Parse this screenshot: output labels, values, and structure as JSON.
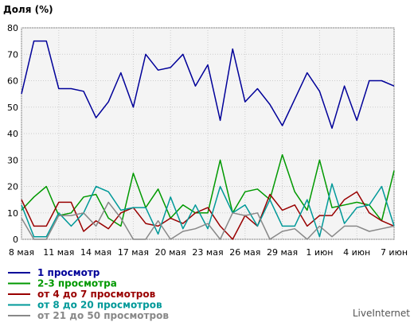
{
  "chart_data": {
    "type": "line",
    "ylabel": "Доля (%)",
    "ylim": [
      0,
      80
    ],
    "yticks": [
      "0",
      "10",
      "20",
      "30",
      "40",
      "50",
      "60",
      "70",
      "80"
    ],
    "x_tick_labels": [
      "8 мая",
      "11 мая",
      "14 мая",
      "17 мая",
      "20 мая",
      "23 мая",
      "26 мая",
      "29 мая",
      "1 июн",
      "4 июн",
      "7 июн"
    ],
    "x_tick_interval_days": 3,
    "grid": true,
    "legend_position": "bottom-left",
    "series": [
      {
        "name": "1 просмотр",
        "color": "#000099",
        "values": [
          55,
          75,
          75,
          57,
          57,
          56,
          46,
          52,
          63,
          50,
          70,
          64,
          65,
          70,
          58,
          66,
          45,
          72,
          52,
          57,
          51,
          43,
          53,
          63,
          56,
          42,
          58,
          45,
          60,
          60,
          58
        ]
      },
      {
        "name": "2-3 просмотра",
        "color": "#009900",
        "values": [
          11,
          16,
          20,
          9,
          10,
          16,
          17,
          8,
          5,
          25,
          12,
          19,
          8,
          13,
          10,
          10,
          30,
          10,
          18,
          19,
          15,
          32,
          18,
          11,
          30,
          12,
          13,
          14,
          13,
          7,
          26
        ]
      },
      {
        "name": "от 4 до 7 просмотров",
        "color": "#990000",
        "values": [
          15,
          5,
          5,
          14,
          14,
          3,
          7,
          4,
          10,
          12,
          6,
          5,
          8,
          6,
          10,
          12,
          5,
          0,
          9,
          5,
          17,
          11,
          13,
          5,
          9,
          9,
          15,
          18,
          10,
          7,
          5
        ]
      },
      {
        "name": "от 8 до 20 просмотров",
        "color": "#009999",
        "values": [
          13,
          1,
          1,
          10,
          5,
          10,
          20,
          18,
          11,
          12,
          12,
          2,
          16,
          4,
          13,
          4,
          20,
          10,
          13,
          5,
          15,
          5,
          5,
          15,
          1,
          21,
          6,
          12,
          13,
          20,
          5
        ]
      },
      {
        "name": "от 21 до 50 просмотров",
        "color": "#888888",
        "values": [
          8,
          0,
          0,
          9,
          9,
          10,
          5,
          14,
          8,
          0,
          0,
          7,
          0,
          3,
          4,
          6,
          0,
          10,
          9,
          10,
          0,
          3,
          4,
          0,
          5,
          1,
          5,
          5,
          3,
          4,
          5
        ]
      }
    ]
  },
  "credit": "LiveInternet"
}
